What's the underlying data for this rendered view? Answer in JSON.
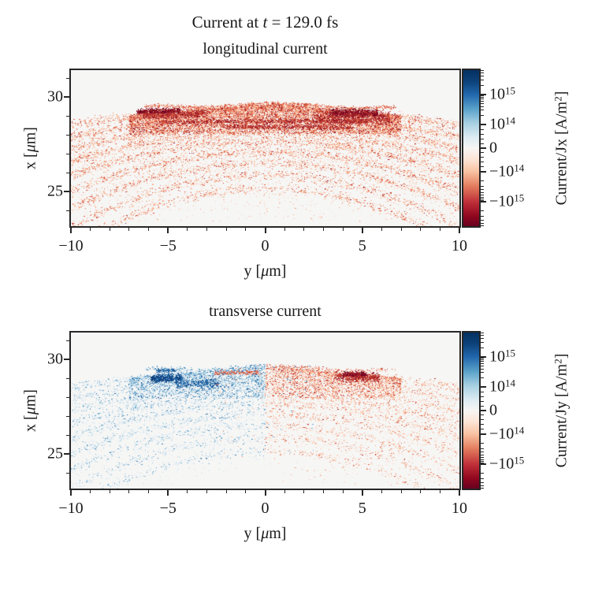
{
  "figure": {
    "title": "Current at t = 129.0 fs",
    "title_parts": [
      [
        "t",
        "Current at "
      ],
      [
        "i",
        "t"
      ],
      [
        "t",
        " = 129.0 fs"
      ]
    ],
    "background": "#ffffff",
    "text_color": "#1a1a1a",
    "axis_color": "#262626"
  },
  "palettes": {
    "red": [
      "#fee8dc",
      "#fdd5bf",
      "#fbbd9d",
      "#f5a27e",
      "#ea8060",
      "#dd6148",
      "#c94536",
      "#ad2b2d",
      "#8d1127",
      "#67001f"
    ],
    "blue": [
      "#e1edf5",
      "#cfe2f0",
      "#b6d6e8",
      "#94c4dd",
      "#6faccf",
      "#4f94c1",
      "#3579b1",
      "#2263a4",
      "#134c8c",
      "#08306b"
    ]
  },
  "colormap_stops": [
    [
      0,
      "#053061"
    ],
    [
      0.07,
      "#0c4178"
    ],
    [
      0.155,
      "#2166ac"
    ],
    [
      0.25,
      "#5aa2ca"
    ],
    [
      0.34,
      "#a8d0e2"
    ],
    [
      0.43,
      "#dcebf2"
    ],
    [
      0.5,
      "#f7f5f3"
    ],
    [
      0.57,
      "#fce5d6"
    ],
    [
      0.65,
      "#f8c2a2"
    ],
    [
      0.745,
      "#e27c5d"
    ],
    [
      0.845,
      "#bf303a"
    ],
    [
      0.93,
      "#93081f"
    ],
    [
      1,
      "#67001f"
    ]
  ],
  "chart_data": [
    {
      "type": "scatter",
      "id": "longitudinal",
      "title": "longitudinal current",
      "xlabel": "y [μm]",
      "xlabel_parts": [
        [
          "t",
          "y ["
        ],
        [
          "i",
          "μ"
        ],
        [
          "t",
          "m]"
        ]
      ],
      "ylabel": "x [μm]",
      "ylabel_parts": [
        [
          "t",
          "x ["
        ],
        [
          "i",
          "μ"
        ],
        [
          "t",
          "m]"
        ]
      ],
      "xlim": [
        -10,
        10
      ],
      "ylim": [
        23.17,
        31.42
      ],
      "xticks": [
        -10,
        -5,
        0,
        5,
        10
      ],
      "xtick_labels": [
        "−10",
        "−5",
        "0",
        "5",
        "10"
      ],
      "yticks": [
        30,
        25
      ],
      "ytick_labels": [
        "30",
        "25"
      ],
      "minor_x_step": 1,
      "minor_y_step": 1,
      "plot_bg": "#f6f6f5",
      "mode": "jx",
      "seed": 42,
      "density": 1.0,
      "colorbar": {
        "label": "Current/Jx [A/m²]",
        "label_parts": [
          [
            "t",
            "Current/Jx [A/m"
          ],
          [
            "s",
            "2"
          ],
          [
            "t",
            "]"
          ]
        ],
        "scale": "symlog",
        "linthresh": 100000000000000.0,
        "vmax": 6350000000000000.0,
        "major_ticks": [
          1000000000000000.0,
          100000000000000.0,
          0,
          -100000000000000.0,
          -1000000000000000.0
        ],
        "tick_labels": [
          "10^15",
          "10^14",
          "0",
          "−10^14",
          "−10^15"
        ],
        "cmap": "RdBu"
      },
      "structure": {
        "arcs": [
          [
            29.3,
            0.008,
            1500
          ],
          [
            28.9,
            0.01,
            1500
          ],
          [
            28.5,
            0.012,
            1400
          ],
          [
            28.1,
            0.015,
            1300
          ],
          [
            27.65,
            0.018,
            1300
          ],
          [
            27.1,
            0.021,
            1200
          ],
          [
            26.5,
            0.024,
            1000
          ],
          [
            25.85,
            0.027,
            900
          ],
          [
            25.15,
            0.03,
            800
          ]
        ],
        "rim": {
          "base": 29.58,
          "curv": 0.004,
          "wave_amp": 0.09,
          "wave_freq": 0.9,
          "n": 900,
          "ymin": -6.2,
          "ymax": 6.7
        },
        "core": {
          "n": 9000,
          "ymax": 7.0,
          "x_top": 29.5,
          "x_bot": 28.05,
          "top_curv": 0.012,
          "exp": 1.7
        },
        "sparse": {
          "n": 2600,
          "x_min": 23.3,
          "x_max": 29.2,
          "curv": 0.02
        },
        "streaks": [
          {
            "y0": -6.3,
            "y1": -3.0,
            "x": 29.12,
            "w": 0.1,
            "n": 700,
            "shade": "dark"
          },
          {
            "y0": -6.6,
            "y1": -4.4,
            "x": 29.32,
            "w": 0.07,
            "n": 500,
            "shade": "vdark"
          },
          {
            "y0": 2.6,
            "y1": 6.4,
            "x": 28.95,
            "w": 0.16,
            "n": 900,
            "shade": "dark"
          },
          {
            "y0": 3.3,
            "y1": 5.8,
            "x": 29.22,
            "w": 0.09,
            "n": 650,
            "shade": "vdark"
          },
          {
            "y0": -5.5,
            "y1": 5.2,
            "x": 28.72,
            "w": 0.06,
            "n": 900,
            "shade": "dark"
          },
          {
            "y0": -2.2,
            "y1": 4.4,
            "x": 28.42,
            "w": 0.06,
            "n": 600,
            "shade": "dark"
          }
        ]
      }
    },
    {
      "type": "scatter",
      "id": "transverse",
      "title": "transverse current",
      "xlabel": "y [μm]",
      "xlabel_parts": [
        [
          "t",
          "y ["
        ],
        [
          "i",
          "μ"
        ],
        [
          "t",
          "m]"
        ]
      ],
      "ylabel": "x [μm]",
      "ylabel_parts": [
        [
          "t",
          "x ["
        ],
        [
          "i",
          "μ"
        ],
        [
          "t",
          "m]"
        ]
      ],
      "xlim": [
        -10,
        10
      ],
      "ylim": [
        23.17,
        31.42
      ],
      "xticks": [
        -10,
        -5,
        0,
        5,
        10
      ],
      "xtick_labels": [
        "−10",
        "−5",
        "0",
        "5",
        "10"
      ],
      "yticks": [
        30,
        25
      ],
      "ytick_labels": [
        "30",
        "25"
      ],
      "minor_x_step": 1,
      "minor_y_step": 1,
      "plot_bg": "#f6f6f5",
      "mode": "jy",
      "seed": 137,
      "density": 0.75,
      "colorbar": {
        "label": "Current/Jy [A/m²]",
        "label_parts": [
          [
            "t",
            "Current/Jy [A/m"
          ],
          [
            "s",
            "2"
          ],
          [
            "t",
            "]"
          ]
        ],
        "scale": "symlog",
        "linthresh": 100000000000000.0,
        "vmax": 6350000000000000.0,
        "major_ticks": [
          1000000000000000.0,
          100000000000000.0,
          0,
          -100000000000000.0,
          -1000000000000000.0
        ],
        "tick_labels": [
          "10^15",
          "10^14",
          "0",
          "−10^14",
          "−10^15"
        ],
        "cmap": "RdBu"
      },
      "structure": {
        "arcs": [
          [
            29.3,
            0.008,
            1300
          ],
          [
            28.9,
            0.01,
            1300
          ],
          [
            28.5,
            0.012,
            1200
          ],
          [
            28.1,
            0.015,
            1150
          ],
          [
            27.65,
            0.018,
            1150
          ],
          [
            27.1,
            0.021,
            1050
          ],
          [
            26.5,
            0.024,
            900
          ],
          [
            25.85,
            0.027,
            800
          ],
          [
            25.15,
            0.03,
            700
          ]
        ],
        "rim": {
          "base": 29.58,
          "curv": 0.004,
          "wave_amp": 0.09,
          "wave_freq": 0.9,
          "n": 550,
          "ymin": -6.2,
          "ymax": 6.7
        },
        "core": {
          "n": 6000,
          "ymax": 7.0,
          "x_top": 29.5,
          "x_bot": 27.95,
          "top_curv": 0.012,
          "exp": 1.7
        },
        "sparse": {
          "n": 2000,
          "x_min": 23.3,
          "x_max": 29.2,
          "curv": 0.02
        },
        "streaks": [
          {
            "y0": -5.9,
            "y1": -4.3,
            "x": 29.05,
            "w": 0.1,
            "n": 500,
            "shade": "vdark"
          },
          {
            "y0": -4.6,
            "y1": -2.4,
            "x": 28.75,
            "w": 0.12,
            "n": 350,
            "shade": "dark"
          },
          {
            "y0": 3.6,
            "y1": 5.9,
            "x": 29.1,
            "w": 0.12,
            "n": 550,
            "shade": "dark"
          },
          {
            "y0": 4.0,
            "y1": 5.2,
            "x": 29.25,
            "w": 0.07,
            "n": 300,
            "shade": "vdark"
          },
          {
            "y0": -2.6,
            "y1": -0.3,
            "x": 29.3,
            "w": 0.05,
            "n": 150,
            "shade": "mid",
            "force": "red"
          },
          {
            "y0": -5.6,
            "y1": -4.6,
            "x": 29.45,
            "w": 0.05,
            "n": 120,
            "shade": "dark",
            "force": "blue"
          }
        ]
      }
    }
  ]
}
